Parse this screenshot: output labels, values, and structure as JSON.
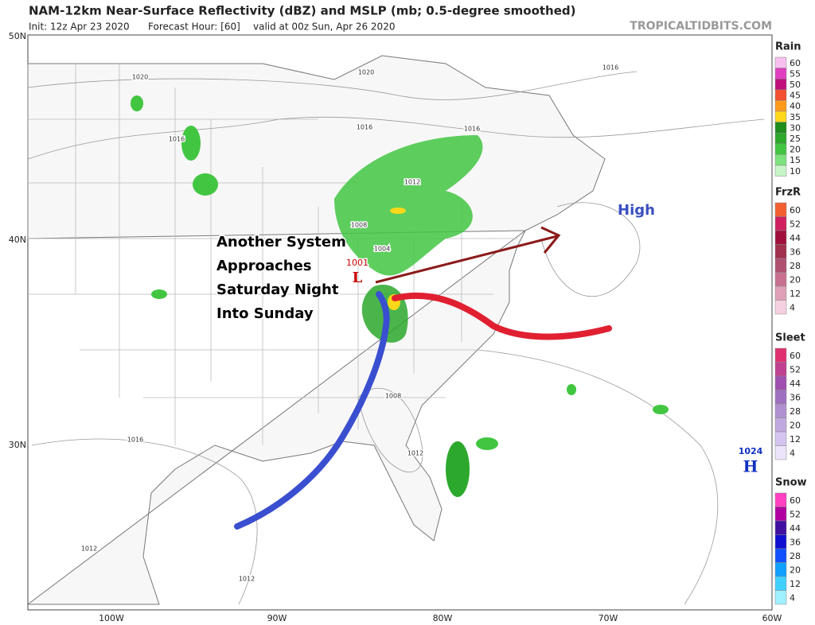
{
  "header": {
    "title": "NAM-12km Near-Surface Reflectivity (dBZ) and MSLP (mb; 0.5-degree smoothed)",
    "init": "Init: 12z Apr 23 2020",
    "forecast_hour": "Forecast Hour: [60]",
    "valid": "valid at 00z Sun, Apr 26 2020",
    "credit": "TROPICALTIDBITS.COM"
  },
  "map": {
    "lat_labels": [
      "50N",
      "40N",
      "30N"
    ],
    "lon_labels": [
      "100W",
      "90W",
      "80W",
      "70W",
      "60W"
    ],
    "annotation": [
      "Another System",
      "Approaches",
      "Saturday Night",
      "Into Sunday"
    ],
    "high_label": "High",
    "isobar_labels": [
      "1020",
      "1016",
      "1020",
      "1016",
      "1016",
      "1016",
      "1012",
      "1008",
      "1004",
      "1008",
      "1012",
      "1016",
      "1012",
      "1012"
    ],
    "low": {
      "pressure": "1001",
      "symbol": "L"
    },
    "high": {
      "pressure": "1024",
      "symbol": "H"
    }
  },
  "legends": [
    {
      "title": "Rain",
      "levels": [
        60,
        55,
        50,
        45,
        40,
        35,
        30,
        25,
        20,
        15,
        10
      ],
      "colors": [
        "#f9c0ef",
        "#e040c0",
        "#c0107a",
        "#f25030",
        "#ff9a1a",
        "#ffd81a",
        "#1e8c1e",
        "#2ca82c",
        "#42c642",
        "#7ce27c",
        "#c8f5c8"
      ]
    },
    {
      "title": "FrzR",
      "levels": [
        60,
        52,
        44,
        36,
        28,
        20,
        12,
        4
      ],
      "colors": [
        "#f36030",
        "#d02060",
        "#a0103c",
        "#a0304c",
        "#b05070",
        "#c87090",
        "#e0a0b8",
        "#f5d0e0"
      ]
    },
    {
      "title": "Sleet",
      "levels": [
        60,
        52,
        44,
        36,
        28,
        20,
        12,
        4
      ],
      "colors": [
        "#e03070",
        "#c04090",
        "#a050b0",
        "#a070c0",
        "#b090d0",
        "#c0a8e0",
        "#d4c4ef",
        "#ece4fa"
      ]
    },
    {
      "title": "Snow",
      "levels": [
        60,
        52,
        44,
        36,
        28,
        20,
        12,
        4
      ],
      "colors": [
        "#ff40c0",
        "#b000a0",
        "#4010a0",
        "#1010d0",
        "#1050ff",
        "#10a0ff",
        "#40d0ff",
        "#a0f0ff"
      ]
    }
  ]
}
